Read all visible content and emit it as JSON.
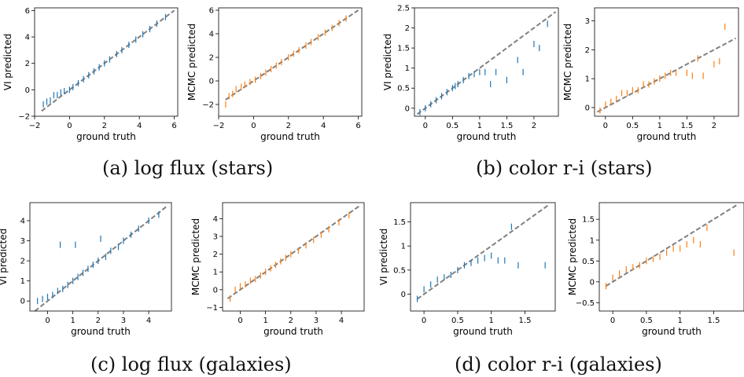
{
  "captions": {
    "a": "(a) log flux (stars)",
    "b": "(b) color r-i (stars)",
    "c": "(c) log flux (galaxies)",
    "d": "(d) color r-i (galaxies)"
  },
  "colors": {
    "vi": "#1f77b4",
    "mcmc": "#ff7f0e",
    "diagonal": "#808080"
  },
  "chart_data": [
    {
      "id": "a-vi",
      "type": "scatter",
      "xlabel": "ground truth",
      "ylabel": "VI predicted",
      "xlim": [
        -2,
        6.2
      ],
      "ylim": [
        -2,
        6.2
      ],
      "xticks": [
        -2,
        0,
        2,
        4,
        6
      ],
      "yticks": [
        -2,
        0,
        2,
        4,
        6
      ],
      "series": [
        {
          "color": "#1f77b4",
          "points": [
            [
              -1.5,
              -1.1
            ],
            [
              -1.3,
              -0.9
            ],
            [
              -1.1,
              -0.8
            ],
            [
              -0.9,
              -0.4
            ],
            [
              -0.7,
              -0.4
            ],
            [
              -0.5,
              -0.2
            ],
            [
              -0.3,
              -0.1
            ],
            [
              0,
              0
            ],
            [
              0.2,
              0.2
            ],
            [
              0.5,
              0.5
            ],
            [
              0.8,
              0.8
            ],
            [
              1.1,
              1.1
            ],
            [
              1.4,
              1.4
            ],
            [
              1.7,
              1.7
            ],
            [
              2,
              2
            ],
            [
              2.3,
              2.3
            ],
            [
              2.7,
              2.7
            ],
            [
              3,
              3
            ],
            [
              3.4,
              3.4
            ],
            [
              3.8,
              3.8
            ],
            [
              4.2,
              4.2
            ],
            [
              4.6,
              4.6
            ],
            [
              5,
              5
            ],
            [
              5.5,
              5.5
            ]
          ]
        }
      ],
      "diagonal": [
        -1.6,
        6
      ]
    },
    {
      "id": "a-mcmc",
      "type": "scatter",
      "xlabel": "ground truth",
      "ylabel": "MCMC predicted",
      "xlim": [
        -2,
        6.2
      ],
      "ylim": [
        -3,
        6.2
      ],
      "xticks": [
        -2,
        0,
        2,
        4,
        6
      ],
      "yticks": [
        -2,
        0,
        2,
        4,
        6
      ],
      "series": [
        {
          "color": "#ff7f0e",
          "points": [
            [
              -1.6,
              -2
            ],
            [
              -1.4,
              -1.3
            ],
            [
              -1.2,
              -1.1
            ],
            [
              -1,
              -0.7
            ],
            [
              -0.7,
              -0.5
            ],
            [
              -0.5,
              -0.3
            ],
            [
              -0.2,
              -0.1
            ],
            [
              0.1,
              0.1
            ],
            [
              0.4,
              0.4
            ],
            [
              0.7,
              0.7
            ],
            [
              1,
              1
            ],
            [
              1.3,
              1.3
            ],
            [
              1.6,
              1.6
            ],
            [
              2,
              2
            ],
            [
              2.3,
              2.3
            ],
            [
              2.6,
              2.6
            ],
            [
              3,
              3
            ],
            [
              3.3,
              3.3
            ],
            [
              3.7,
              3.7
            ],
            [
              4.1,
              4.1
            ],
            [
              4.5,
              4.5
            ],
            [
              4.9,
              4.9
            ],
            [
              5.3,
              5.3
            ]
          ]
        }
      ],
      "diagonal": [
        -1.6,
        6
      ]
    },
    {
      "id": "b-vi",
      "type": "scatter",
      "xlabel": "ground truth",
      "ylabel": "VI predicted",
      "xlim": [
        -0.2,
        2.45
      ],
      "ylim": [
        -0.2,
        2.5
      ],
      "xticks": [
        0.0,
        0.5,
        1.0,
        1.5,
        2.0,
        2.5
      ],
      "yticks": [
        0.0,
        0.5,
        1.0,
        1.5,
        2.0,
        2.5
      ],
      "series": [
        {
          "color": "#1f77b4",
          "points": [
            [
              -0.1,
              -0.1
            ],
            [
              0,
              0
            ],
            [
              0.1,
              0.1
            ],
            [
              0.2,
              0.2
            ],
            [
              0.3,
              0.3
            ],
            [
              0.4,
              0.4
            ],
            [
              0.5,
              0.5
            ],
            [
              0.55,
              0.55
            ],
            [
              0.6,
              0.6
            ],
            [
              0.7,
              0.7
            ],
            [
              0.8,
              0.8
            ],
            [
              0.9,
              0.85
            ],
            [
              1,
              0.9
            ],
            [
              1.1,
              0.9
            ],
            [
              1.2,
              0.6
            ],
            [
              1.3,
              0.9
            ],
            [
              1.5,
              0.7
            ],
            [
              1.7,
              1.2
            ],
            [
              1.8,
              0.9
            ],
            [
              2,
              1.6
            ],
            [
              2.1,
              1.5
            ],
            [
              2.25,
              2.1
            ]
          ]
        }
      ],
      "diagonal": [
        -0.15,
        2.4
      ]
    },
    {
      "id": "b-mcmc",
      "type": "scatter",
      "xlabel": "ground truth",
      "ylabel": "MCMC predicted",
      "xlim": [
        -0.2,
        2.45
      ],
      "ylim": [
        -0.3,
        3.45
      ],
      "xticks": [
        0.0,
        0.5,
        1.0,
        1.5,
        2.0,
        2.5
      ],
      "yticks": [
        0,
        1,
        2,
        3
      ],
      "series": [
        {
          "color": "#ff7f0e",
          "points": [
            [
              -0.1,
              -0.1
            ],
            [
              0,
              0.1
            ],
            [
              0.1,
              0.2
            ],
            [
              0.2,
              0.3
            ],
            [
              0.3,
              0.5
            ],
            [
              0.4,
              0.5
            ],
            [
              0.5,
              0.6
            ],
            [
              0.6,
              0.6
            ],
            [
              0.7,
              0.8
            ],
            [
              0.8,
              0.8
            ],
            [
              0.9,
              0.9
            ],
            [
              1,
              1
            ],
            [
              1.1,
              1.1
            ],
            [
              1.2,
              1.2
            ],
            [
              1.3,
              1.2
            ],
            [
              1.5,
              1.2
            ],
            [
              1.6,
              1.1
            ],
            [
              1.7,
              1.7
            ],
            [
              1.8,
              1.1
            ],
            [
              2,
              1.5
            ],
            [
              2.1,
              1.6
            ],
            [
              2.2,
              2.8
            ]
          ]
        }
      ],
      "diagonal": [
        -0.15,
        2.4
      ]
    },
    {
      "id": "c-vi",
      "type": "scatter",
      "xlabel": "ground truth",
      "ylabel": "VI predicted",
      "xlim": [
        -0.7,
        4.9
      ],
      "ylim": [
        -0.5,
        4.9
      ],
      "xticks": [
        0,
        1,
        2,
        3,
        4
      ],
      "yticks": [
        0,
        1,
        2,
        3,
        4
      ],
      "series": [
        {
          "color": "#1f77b4",
          "points": [
            [
              -0.4,
              0
            ],
            [
              -0.2,
              0.1
            ],
            [
              0,
              0.2
            ],
            [
              0.2,
              0.3
            ],
            [
              0.4,
              0.5
            ],
            [
              0.5,
              2.8
            ],
            [
              0.6,
              0.6
            ],
            [
              0.8,
              0.8
            ],
            [
              1,
              1
            ],
            [
              1.1,
              2.8
            ],
            [
              1.2,
              1.2
            ],
            [
              1.4,
              1.4
            ],
            [
              1.6,
              1.6
            ],
            [
              1.8,
              1.8
            ],
            [
              2,
              2
            ],
            [
              2.1,
              3.1
            ],
            [
              2.3,
              2.2
            ],
            [
              2.5,
              2.5
            ],
            [
              2.8,
              2.7
            ],
            [
              3,
              3
            ],
            [
              3.3,
              3.3
            ],
            [
              3.6,
              3.6
            ],
            [
              4,
              4
            ],
            [
              4.4,
              4.3
            ]
          ]
        }
      ],
      "diagonal": [
        -0.5,
        4.7
      ]
    },
    {
      "id": "c-mcmc",
      "type": "scatter",
      "xlabel": "ground truth",
      "ylabel": "MCMC predicted",
      "xlim": [
        -0.7,
        4.9
      ],
      "ylim": [
        -1.2,
        4.9
      ],
      "xticks": [
        0,
        1,
        2,
        3,
        4
      ],
      "yticks": [
        -1,
        0,
        1,
        2,
        3,
        4
      ],
      "series": [
        {
          "color": "#ff7f0e",
          "points": [
            [
              -0.4,
              -0.5
            ],
            [
              -0.2,
              0
            ],
            [
              0,
              0.2
            ],
            [
              0.2,
              0.3
            ],
            [
              0.4,
              0.5
            ],
            [
              0.6,
              0.6
            ],
            [
              0.8,
              0.8
            ],
            [
              1,
              1
            ],
            [
              1.2,
              1.2
            ],
            [
              1.4,
              1.4
            ],
            [
              1.6,
              1.6
            ],
            [
              1.8,
              1.8
            ],
            [
              2,
              2
            ],
            [
              2.3,
              2.2
            ],
            [
              2.6,
              2.5
            ],
            [
              2.9,
              2.8
            ],
            [
              3.2,
              3.1
            ],
            [
              3.5,
              3.4
            ],
            [
              3.9,
              3.8
            ],
            [
              4.3,
              4.2
            ]
          ]
        }
      ],
      "diagonal": [
        -0.5,
        4.7
      ]
    },
    {
      "id": "d-vi",
      "type": "scatter",
      "xlabel": "ground truth",
      "ylabel": "VI predicted",
      "xlim": [
        -0.2,
        1.95
      ],
      "ylim": [
        -0.35,
        1.9
      ],
      "xticks": [
        0.0,
        0.5,
        1.0,
        1.5
      ],
      "yticks": [
        0.0,
        0.5,
        1.0,
        1.5
      ],
      "series": [
        {
          "color": "#1f77b4",
          "points": [
            [
              -0.1,
              -0.1
            ],
            [
              0,
              0.1
            ],
            [
              0.1,
              0.2
            ],
            [
              0.2,
              0.3
            ],
            [
              0.3,
              0.35
            ],
            [
              0.4,
              0.4
            ],
            [
              0.5,
              0.5
            ],
            [
              0.6,
              0.6
            ],
            [
              0.7,
              0.65
            ],
            [
              0.8,
              0.7
            ],
            [
              0.9,
              0.75
            ],
            [
              1,
              0.8
            ],
            [
              1.1,
              0.7
            ],
            [
              1.2,
              0.7
            ],
            [
              1.3,
              1.4
            ],
            [
              1.4,
              0.6
            ],
            [
              1.8,
              0.6
            ]
          ]
        }
      ],
      "diagonal": [
        -0.1,
        1.85
      ]
    },
    {
      "id": "d-mcmc",
      "type": "scatter",
      "xlabel": "ground truth",
      "ylabel": "MCMC predicted",
      "xlim": [
        -0.2,
        1.95
      ],
      "ylim": [
        -0.7,
        1.9
      ],
      "xticks": [
        0.0,
        0.5,
        1.0,
        1.5
      ],
      "yticks": [
        -0.5,
        0.0,
        0.5,
        1.0,
        1.5
      ],
      "series": [
        {
          "color": "#ff7f0e",
          "points": [
            [
              -0.1,
              -0.1
            ],
            [
              0,
              0.1
            ],
            [
              0.1,
              0.2
            ],
            [
              0.2,
              0.3
            ],
            [
              0.3,
              0.35
            ],
            [
              0.4,
              0.4
            ],
            [
              0.5,
              0.5
            ],
            [
              0.6,
              0.55
            ],
            [
              0.7,
              0.6
            ],
            [
              0.8,
              0.7
            ],
            [
              0.9,
              0.8
            ],
            [
              1,
              0.8
            ],
            [
              1.1,
              0.9
            ],
            [
              1.2,
              1
            ],
            [
              1.3,
              0.9
            ],
            [
              1.4,
              1.3
            ],
            [
              1.8,
              0.7
            ]
          ]
        }
      ],
      "diagonal": [
        -0.1,
        1.85
      ]
    }
  ]
}
